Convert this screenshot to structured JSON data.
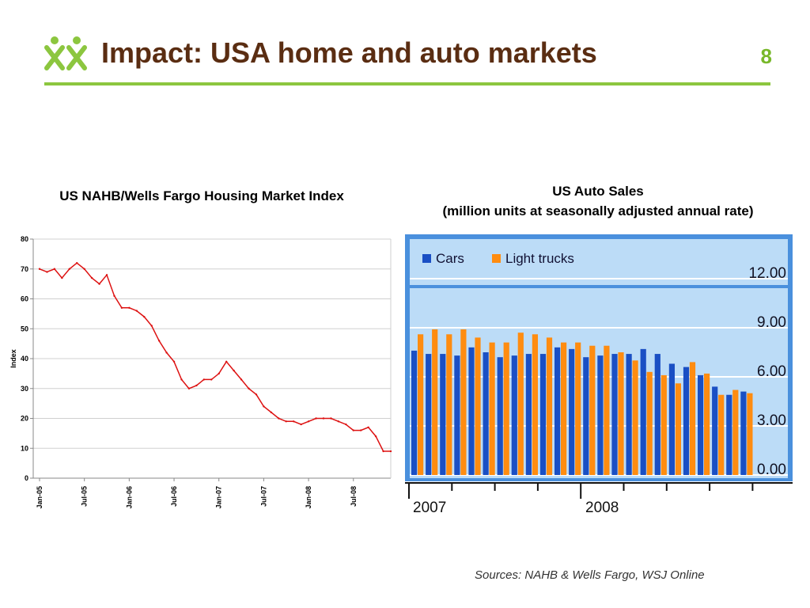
{
  "slide": {
    "title": "Impact: USA home and auto markets",
    "page_number": "8",
    "sources": "Sources: NAHB & Wells Fargo, WSJ Online",
    "accent_color": "#8cc63f",
    "title_color": "#5a2d12"
  },
  "chart_data": [
    {
      "type": "line",
      "title": "US NAHB/Wells Fargo Housing Market Index",
      "ylabel": "Index",
      "ylim": [
        0,
        80
      ],
      "y_ticks": [
        0,
        10,
        20,
        30,
        40,
        50,
        60,
        70,
        80
      ],
      "x_tick_labels": [
        "Jan-05",
        "Jul-05",
        "Jan-06",
        "Jul-06",
        "Jan-07",
        "Jul-07",
        "Jan-08",
        "Jul-08"
      ],
      "grid": true,
      "line_color": "#dd1111",
      "series": [
        {
          "x_start": "Jan-05",
          "frequency": "monthly",
          "values": [
            70,
            69,
            70,
            67,
            70,
            72,
            70,
            67,
            65,
            68,
            61,
            57,
            57,
            56,
            54,
            51,
            46,
            42,
            39,
            33,
            30,
            31,
            33,
            33,
            35,
            39,
            36,
            33,
            30,
            28,
            24,
            22,
            20,
            19,
            19,
            18,
            19,
            20,
            20,
            20,
            19,
            18,
            16,
            16,
            17,
            14,
            9,
            9
          ]
        }
      ]
    },
    {
      "type": "bar",
      "title": "US Auto Sales",
      "subtitle": "(million units at seasonally adjusted annual rate)",
      "ylim": [
        0,
        12
      ],
      "y_tick_labels": [
        "0.00",
        "3.00",
        "6.00",
        "9.00",
        "12.00"
      ],
      "y_tick_values": [
        0,
        3,
        6,
        9,
        12
      ],
      "legend_position": "top-left",
      "year_labels": [
        "2007",
        "2008"
      ],
      "series": [
        {
          "name": "Cars",
          "color": "#1a4fc4",
          "values": [
            7.6,
            7.4,
            7.4,
            7.3,
            7.8,
            7.5,
            7.2,
            7.3,
            7.4,
            7.4,
            7.8,
            7.7,
            7.2,
            7.3,
            7.4,
            7.4,
            7.7,
            7.4,
            6.8,
            6.6,
            6.1,
            5.4,
            4.9,
            5.1
          ]
        },
        {
          "name": "Light trucks",
          "color": "#ff8c10",
          "values": [
            8.6,
            8.9,
            8.6,
            8.9,
            8.4,
            8.1,
            8.1,
            8.7,
            8.6,
            8.4,
            8.1,
            8.1,
            7.9,
            7.9,
            7.5,
            7.0,
            6.3,
            6.1,
            5.6,
            6.9,
            6.2,
            4.9,
            5.2,
            5.0
          ]
        }
      ]
    }
  ]
}
